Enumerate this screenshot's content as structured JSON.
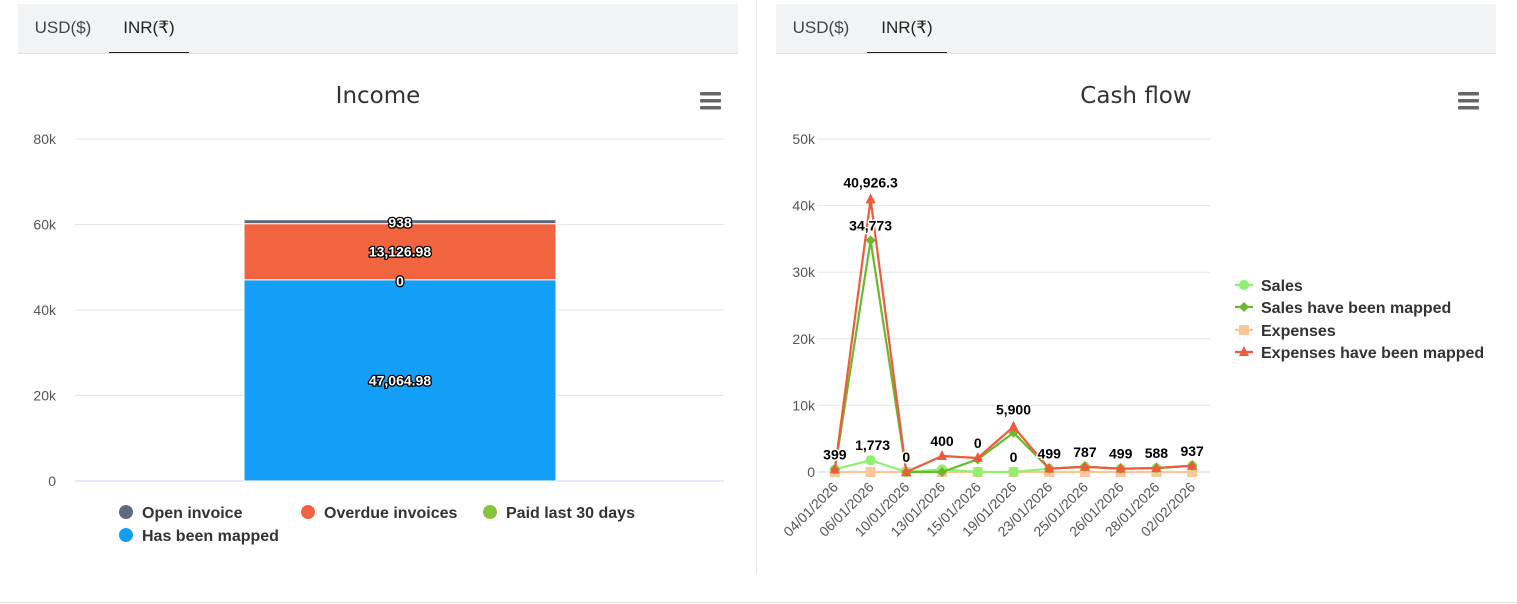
{
  "tabs": [
    "USD($)",
    "INR(₹)"
  ],
  "chart_data": [
    {
      "type": "bar",
      "stacked": true,
      "title": "Income",
      "categories": [
        ""
      ],
      "ylim": [
        0,
        80000
      ],
      "yticks": [
        0,
        20000,
        40000,
        60000,
        80000
      ],
      "ytick_labels": [
        "0",
        "20k",
        "40k",
        "60k",
        "80k"
      ],
      "series": [
        {
          "name": "Open invoice",
          "color": "#5d6b7f",
          "values": [
            938
          ],
          "label": "938"
        },
        {
          "name": "Overdue invoices",
          "color": "#f26440",
          "values": [
            13126.98
          ],
          "label": "13,126.98"
        },
        {
          "name": "Paid last 30 days",
          "color": "#86c43c",
          "values": [
            0
          ],
          "label": "0"
        },
        {
          "name": "Has been mapped",
          "color": "#139ef7",
          "values": [
            47064.98
          ],
          "label": "47,064.98"
        }
      ],
      "legend_position": "bottom"
    },
    {
      "type": "line",
      "title": "Cash flow",
      "categories": [
        "04/01/2026",
        "06/01/2026",
        "10/01/2026",
        "13/01/2026",
        "15/01/2026",
        "19/01/2026",
        "23/01/2026",
        "25/01/2026",
        "26/01/2026",
        "28/01/2026",
        "02/02/2026"
      ],
      "ylim": [
        0,
        50000
      ],
      "yticks": [
        0,
        10000,
        20000,
        30000,
        40000,
        50000
      ],
      "ytick_labels": [
        "0",
        "10k",
        "20k",
        "30k",
        "40k",
        "50k"
      ],
      "series": [
        {
          "name": "Sales",
          "color": "#8ef06c",
          "marker": "circle",
          "values": [
            399,
            1773,
            0,
            400,
            0,
            0,
            499,
            787,
            499,
            588,
            937
          ],
          "labels": [
            "399",
            "1,773",
            "0",
            "400",
            "0",
            "0",
            "499",
            "787",
            "499",
            "588",
            "937"
          ]
        },
        {
          "name": "Sales have been mapped",
          "color": "#6bb82b",
          "marker": "diamond",
          "values": [
            399,
            34773,
            0,
            0,
            1900,
            5900,
            499,
            787,
            499,
            588,
            937
          ],
          "labels": [
            "",
            "34,773",
            "",
            "",
            "",
            "5,900",
            "",
            "",
            "",
            "",
            ""
          ]
        },
        {
          "name": "Expenses",
          "color": "#f9c79b",
          "marker": "square",
          "values": [
            0,
            0,
            0,
            0,
            0,
            0,
            0,
            0,
            0,
            0,
            0
          ]
        },
        {
          "name": "Expenses have been mapped",
          "color": "#ef5a3c",
          "marker": "triangle",
          "values": [
            399,
            40926.3,
            0,
            2400,
            2100,
            6800,
            499,
            787,
            499,
            588,
            937
          ],
          "labels": [
            "",
            "40,926.3",
            "",
            "",
            "",
            "",
            "",
            "",
            "",
            "",
            ""
          ]
        }
      ],
      "legend_position": "right"
    }
  ]
}
